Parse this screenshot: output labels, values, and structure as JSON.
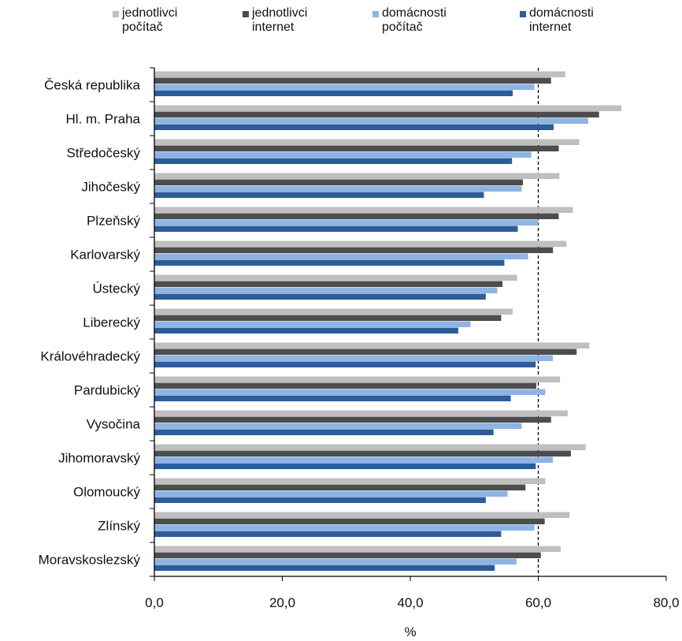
{
  "chart_data": {
    "type": "bar",
    "orientation": "horizontal",
    "title": "",
    "xlabel": "%",
    "ylabel": "",
    "xlim": [
      0,
      80
    ],
    "xticks": [
      0,
      20,
      40,
      60,
      80
    ],
    "xtick_labels": [
      "0,0",
      "20,0",
      "40,0",
      "60,0",
      "80,0"
    ],
    "reference_line": 60,
    "legend_position": "top",
    "categories": [
      "Česká republika",
      "Hl. m. Praha",
      "Středočeský",
      "Jihočeský",
      "Plzeňský",
      "Karlovarský",
      "Ústecký",
      "Liberecký",
      "Královéhradecký",
      "Pardubický",
      "Vysočina",
      "Jihomoravský",
      "Olomoucký",
      "Zlínský",
      "Moravskoslezský"
    ],
    "series": [
      {
        "name": "jednotlivci\npočítač",
        "color": "#bfbfbf",
        "values": [
          64.2,
          73.0,
          66.4,
          63.3,
          65.4,
          64.4,
          56.7,
          56.0,
          68.0,
          63.4,
          64.6,
          67.4,
          61.1,
          64.9,
          63.5
        ]
      },
      {
        "name": "jednotlivci\ninternet",
        "color": "#4d4d4d",
        "values": [
          62.0,
          69.5,
          63.2,
          57.6,
          63.2,
          62.3,
          54.4,
          54.2,
          66.0,
          59.7,
          62.0,
          65.1,
          58.0,
          61.0,
          60.4
        ]
      },
      {
        "name": "domácnosti\npočítač",
        "color": "#8eb4e3",
        "values": [
          59.4,
          67.8,
          58.9,
          57.4,
          60.0,
          58.4,
          53.6,
          49.4,
          62.3,
          61.1,
          57.4,
          62.3,
          55.2,
          59.4,
          56.6
        ]
      },
      {
        "name": "domácnosti\ninternet",
        "color": "#2c5d9a",
        "values": [
          56.0,
          62.4,
          55.9,
          51.5,
          56.8,
          54.7,
          51.8,
          47.5,
          59.6,
          55.7,
          53.0,
          59.6,
          51.8,
          54.2,
          53.2
        ]
      }
    ]
  }
}
